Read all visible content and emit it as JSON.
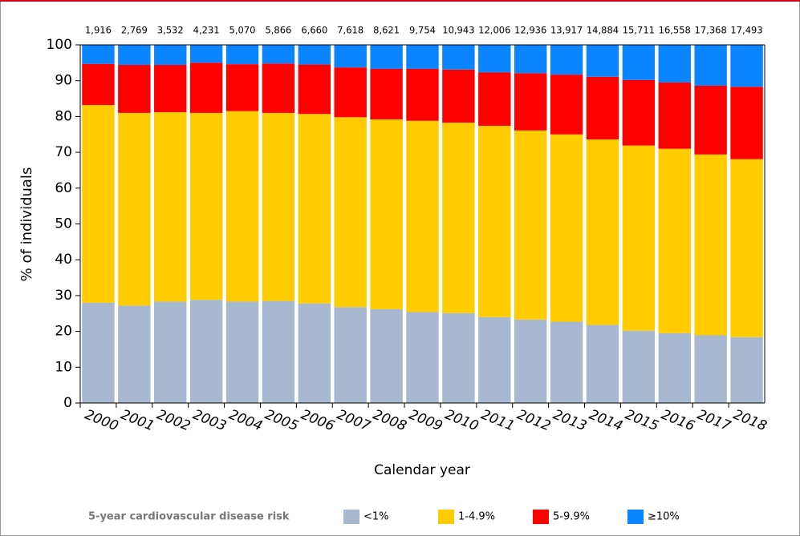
{
  "chart_data": {
    "type": "stacked_bar",
    "x_label": "Calendar year",
    "y_label": "% of individuals",
    "categories": [
      "2000",
      "2001",
      "2002",
      "2003",
      "2004",
      "2005",
      "2006",
      "2007",
      "2008",
      "2009",
      "2010",
      "2011",
      "2012",
      "2013",
      "2014",
      "2015",
      "2016",
      "2017",
      "2018"
    ],
    "counts": [
      1916,
      2769,
      3532,
      4231,
      5070,
      5866,
      6660,
      7618,
      8621,
      9754,
      10943,
      12006,
      12936,
      13917,
      14884,
      15711,
      16558,
      17368,
      17493
    ],
    "count_labels": [
      "1,916",
      "2,769",
      "3,532",
      "4,231",
      "5,070",
      "5,866",
      "6,660",
      "7,618",
      "8,621",
      "9,754",
      "10,943",
      "12,006",
      "12,936",
      "13,917",
      "14,884",
      "15,711",
      "16,558",
      "17,368",
      "17,493"
    ],
    "legend_title": "5-year cardiovascular disease risk",
    "series": [
      {
        "name": "<1%",
        "color": "#a8b8d0",
        "values": [
          28,
          27.2,
          28.3,
          28.8,
          28.3,
          28.5,
          27.8,
          26.8,
          26.2,
          25.4,
          25.1,
          24,
          23.3,
          22.7,
          21.8,
          20.2,
          19.5,
          18.9,
          18.4
        ]
      },
      {
        "name": "1-4.9%",
        "color": "#ffcc00",
        "values": [
          55.2,
          53.8,
          52.9,
          52.2,
          53.2,
          52.5,
          52.9,
          53,
          53,
          53.4,
          53.2,
          53.4,
          52.8,
          52.3,
          51.8,
          51.7,
          51.5,
          50.5,
          49.7
        ]
      },
      {
        "name": "5-9.9%",
        "color": "#ff0000",
        "values": [
          11.5,
          13.4,
          13.2,
          14,
          13.1,
          13.8,
          13.8,
          13.9,
          14.1,
          14.5,
          14.8,
          14.9,
          16,
          16.7,
          17.5,
          18.3,
          18.5,
          19.2,
          20.2
        ]
      },
      {
        "name": "≥10%",
        "color": "#0a84ff",
        "values": [
          5.3,
          5.6,
          5.6,
          5,
          5.4,
          5.2,
          5.5,
          6.3,
          6.7,
          6.7,
          6.9,
          7.7,
          7.9,
          8.3,
          8.9,
          9.8,
          10.5,
          11.4,
          11.7
        ]
      }
    ],
    "ylim": [
      0,
      100
    ],
    "yticks": [
      0,
      10,
      20,
      30,
      40,
      50,
      60,
      70,
      80,
      90,
      100
    ]
  }
}
